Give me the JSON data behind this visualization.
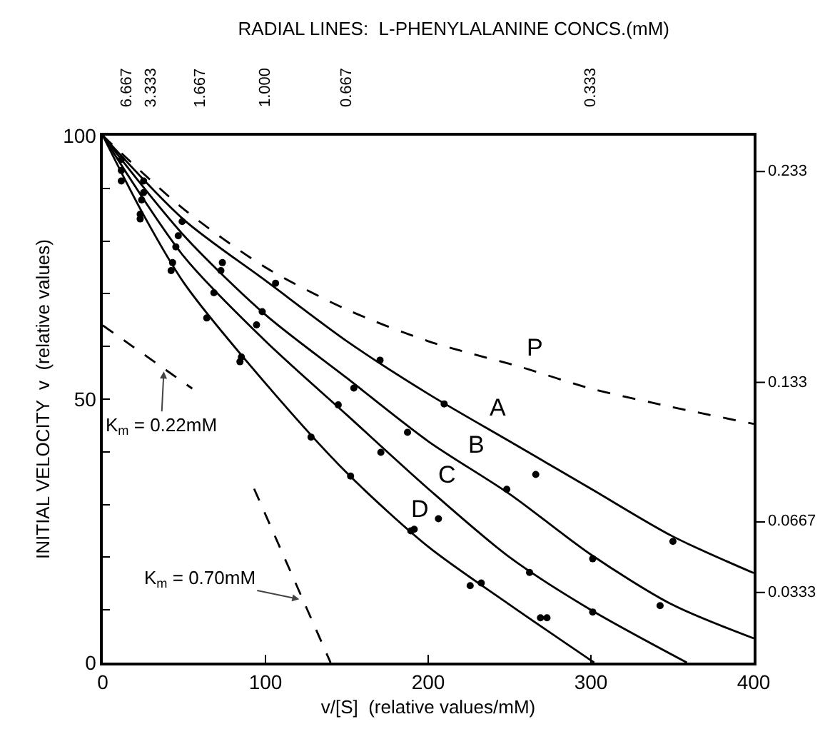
{
  "chart_data": {
    "type": "line",
    "title": "RADIAL LINES:  L-PHENYLALANINE CONCS.(mM)",
    "xlabel": "v/[S]  (relative values/mM)",
    "ylabel": "INITIAL VELOCITY  v  (relative values)",
    "xlim": [
      0,
      400
    ],
    "xticks": [
      0,
      100,
      200,
      300,
      400
    ],
    "ylim": [
      0,
      100
    ],
    "yticks": [
      0,
      {
        "value": 10,
        "label": null
      },
      {
        "value": 20,
        "label": null
      },
      {
        "value": 30,
        "label": null
      },
      {
        "value": 40,
        "label": null
      },
      50,
      {
        "value": 60,
        "label": null
      },
      {
        "value": 70,
        "label": null
      },
      {
        "value": 80,
        "label": null
      },
      {
        "value": 90,
        "label": null
      },
      100
    ],
    "grid": false,
    "series": [
      {
        "name": "A",
        "line_style": "solid",
        "color": "#000000",
        "x": [
          0,
          50,
          100,
          150,
          200,
          250,
          300,
          350,
          400
        ],
        "values": [
          100,
          84,
          72.5,
          61,
          51,
          42,
          33,
          24,
          17
        ]
      },
      {
        "name": "B",
        "line_style": "solid",
        "color": "#000000",
        "x": [
          0,
          50,
          100,
          150,
          200,
          250,
          300,
          350,
          400
        ],
        "values": [
          100,
          81,
          66,
          54,
          42,
          32,
          20.5,
          11,
          4.6
        ]
      },
      {
        "name": "C",
        "line_style": "solid",
        "color": "#000000",
        "x": [
          0,
          50,
          100,
          150,
          200,
          250,
          300,
          359
        ],
        "values": [
          100,
          77,
          61,
          47,
          33,
          20,
          10,
          0
        ]
      },
      {
        "name": "D",
        "line_style": "solid",
        "color": "#000000",
        "x": [
          0,
          25,
          50,
          100,
          150,
          200,
          250,
          302
        ],
        "values": [
          100,
          85,
          72,
          53,
          36,
          22,
          11,
          0
        ]
      },
      {
        "name": "P",
        "line_style": "dashed",
        "color": "#000000",
        "x": [
          0,
          50,
          100,
          150,
          200,
          258,
          300,
          350,
          400
        ],
        "values": [
          100,
          86,
          75,
          67,
          61,
          56,
          52,
          48.5,
          45.3
        ]
      },
      {
        "line_style": "dashed",
        "color": "#000000",
        "x": [
          0,
          55
        ],
        "values": [
          64,
          52
        ]
      },
      {
        "line_style": "dashed",
        "color": "#000000",
        "x": [
          93,
          140
        ],
        "values": [
          33,
          0
        ]
      },
      {
        "type": "scatter",
        "marker": "circle",
        "color": "#000000",
        "x": [
          11.4,
          25.1,
          48.8,
          73.5,
          106.2,
          170.4,
          209.8,
          266.1,
          350.4
        ],
        "values": [
          95.5,
          91.4,
          83.7,
          75.9,
          72.0,
          57.4,
          49.1,
          35.7,
          23.0
        ]
      },
      {
        "type": "scatter",
        "marker": "circle",
        "color": "#000000",
        "x": [
          11.4,
          25.1,
          46.4,
          72.6,
          98,
          154.3,
          187.3,
          248.3,
          301.1,
          342.5
        ],
        "values": [
          93.4,
          89.2,
          81.0,
          74.4,
          66.6,
          52.1,
          43.7,
          32.9,
          19.7,
          10.8
        ]
      },
      {
        "type": "scatter",
        "marker": "circle",
        "color": "#000000",
        "x": [
          11.4,
          23.9,
          44.9,
          68.3,
          94.5,
          144.7,
          170.9,
          206.3,
          262.3,
          301.1
        ],
        "values": [
          91.4,
          87.8,
          78.9,
          70.2,
          64.1,
          48.9,
          39.9,
          27.3,
          17.1,
          9.6
        ]
      },
      {
        "type": "scatter",
        "marker": "circle",
        "color": "#000000",
        "x": [
          23.0,
          23.0,
          42.9,
          42.0,
          63.9,
          85.2,
          84.3,
          128,
          152.3,
          189.3,
          191.4,
          225.8,
          232.6,
          269,
          273
        ],
        "values": [
          85.1,
          84.2,
          75.9,
          74.4,
          65.4,
          58.0,
          57.1,
          42.8,
          35.4,
          25.0,
          25.3,
          14.6,
          15.1,
          8.5,
          8.5
        ]
      }
    ],
    "annotations": [
      {
        "text": "K$_{m}$ = 0.22mM",
        "x": 37.6,
        "y": 55.8
      },
      {
        "text": "K$_{m}$ = 0.70mM",
        "x": 122.5,
        "y": 11.9
      },
      "6.667",
      "3.333",
      "1.667",
      "1.000",
      "0.667",
      "0.333",
      "0.233",
      "0.133",
      "0.0667",
      "0.0333"
    ]
  }
}
